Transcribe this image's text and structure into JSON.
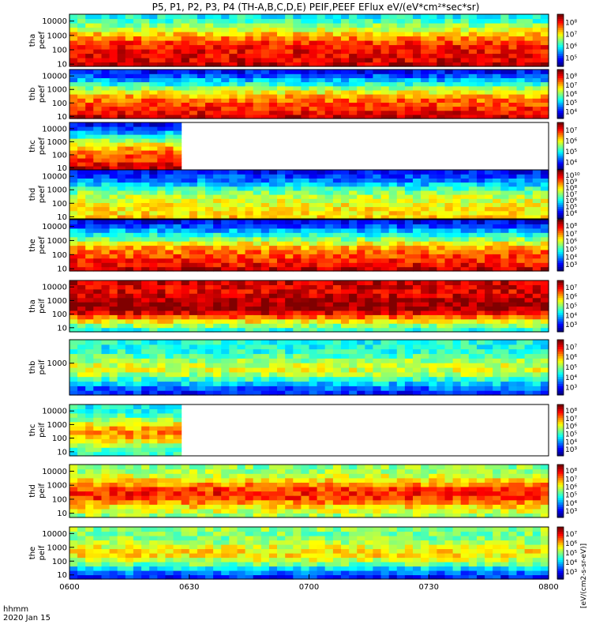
{
  "chart_data": {
    "type": "heatmap",
    "title": "P5, P1, P2, P3, P4 (TH-A,B,C,D,E) PEIF,PEEF EFlux eV/(eV*cm²*sec*sr)",
    "x_axis": {
      "label_line1": "hhmm",
      "label_line2": "2020 Jan 15",
      "ticks": [
        "0600",
        "0630",
        "0700",
        "0730",
        "0800"
      ],
      "range_minutes": [
        0,
        120
      ]
    },
    "units_label": "[eV/(cm2-s-sr-eV)]",
    "panels": [
      {
        "probe": "tha",
        "product": "peef",
        "label_line1": "tha",
        "label_line2": "peef",
        "y_ticks": [
          "10",
          "100",
          "1000",
          "10000"
        ],
        "y_range": [
          7,
          30000
        ],
        "colorbar_ticks": [
          "10⁵",
          "10⁶",
          "10⁷",
          "10⁸"
        ],
        "data_end_minutes": 120,
        "low_E_band": "red",
        "high_E_band": "cyan"
      },
      {
        "probe": "thb",
        "product": "peef",
        "label_line1": "thb",
        "label_line2": "peef",
        "y_ticks": [
          "10",
          "100",
          "1000",
          "10000"
        ],
        "y_range": [
          7,
          30000
        ],
        "colorbar_ticks": [
          "10⁴",
          "10⁵",
          "10⁶",
          "10⁷",
          "10⁸"
        ],
        "data_end_minutes": 120,
        "low_E_band": "red",
        "high_E_band": "blue"
      },
      {
        "probe": "thc",
        "product": "peef",
        "label_line1": "thc",
        "label_line2": "peef",
        "y_ticks": [
          "10",
          "100",
          "1000",
          "10000"
        ],
        "y_range": [
          7,
          30000
        ],
        "colorbar_ticks": [
          "10⁴",
          "10⁵",
          "10⁶",
          "10⁷"
        ],
        "data_end_minutes": 28,
        "low_E_band": "red",
        "high_E_band": "blue"
      },
      {
        "probe": "thd",
        "product": "peef",
        "label_line1": "thd",
        "label_line2": "peef",
        "y_ticks": [
          "10",
          "100",
          "1000",
          "10000"
        ],
        "y_range": [
          7,
          30000
        ],
        "colorbar_ticks": [
          "10⁴",
          "10⁵",
          "10⁶",
          "10⁷",
          "10⁸",
          "10⁹",
          "10¹⁰"
        ],
        "data_end_minutes": 120,
        "low_E_band": "yellow",
        "high_E_band": "blue"
      },
      {
        "probe": "the",
        "product": "peef",
        "label_line1": "the",
        "label_line2": "peef",
        "y_ticks": [
          "10",
          "100",
          "1000",
          "10000"
        ],
        "y_range": [
          7,
          30000
        ],
        "colorbar_ticks": [
          "10³",
          "10⁴",
          "10⁵",
          "10⁶",
          "10⁷",
          "10⁸"
        ],
        "data_end_minutes": 120,
        "low_E_band": "red",
        "high_E_band": "blue"
      },
      {
        "probe": "tha",
        "product": "peif",
        "label_line1": "tha",
        "label_line2": "peif",
        "y_ticks": [
          "10",
          "100",
          "1000",
          "10000"
        ],
        "y_range": [
          5,
          30000
        ],
        "colorbar_ticks": [
          "10³",
          "10⁴",
          "10⁵",
          "10⁶",
          "10⁷"
        ],
        "data_end_minutes": 120,
        "low_E_band": "cyan",
        "high_E_band": "red"
      },
      {
        "probe": "thb",
        "product": "peif",
        "label_line1": "thb",
        "label_line2": "peif",
        "y_ticks": [
          "1000"
        ],
        "y_range": [
          10,
          30000
        ],
        "colorbar_ticks": [
          "10³",
          "10⁴",
          "10⁵",
          "10⁶",
          "10⁷"
        ],
        "data_end_minutes": 120,
        "low_E_band": "blue",
        "high_E_band": "cyan"
      },
      {
        "probe": "thc",
        "product": "peif",
        "label_line1": "thc",
        "label_line2": "peif",
        "y_ticks": [
          "10",
          "100",
          "1000",
          "10000"
        ],
        "y_range": [
          5,
          30000
        ],
        "colorbar_ticks": [
          "10³",
          "10⁴",
          "10⁵",
          "10⁶",
          "10⁷",
          "10⁸"
        ],
        "data_end_minutes": 28,
        "low_E_band": "cyan",
        "high_E_band": "cyan"
      },
      {
        "probe": "thd",
        "product": "peif",
        "label_line1": "thd",
        "label_line2": "peif",
        "y_ticks": [
          "10",
          "100",
          "1000",
          "10000"
        ],
        "y_range": [
          5,
          30000
        ],
        "colorbar_ticks": [
          "10³",
          "10⁴",
          "10⁵",
          "10⁶",
          "10⁷",
          "10⁸"
        ],
        "data_end_minutes": 120,
        "low_E_band": "green",
        "high_E_band": "green"
      },
      {
        "probe": "the",
        "product": "peif",
        "label_line1": "the",
        "label_line2": "peif",
        "y_ticks": [
          "10",
          "100",
          "1000",
          "10000"
        ],
        "y_range": [
          5,
          30000
        ],
        "colorbar_ticks": [
          "10³",
          "10⁴",
          "10⁵",
          "10⁶",
          "10⁷"
        ],
        "data_end_minutes": 120,
        "low_E_band": "blue",
        "high_E_band": "green"
      }
    ]
  }
}
